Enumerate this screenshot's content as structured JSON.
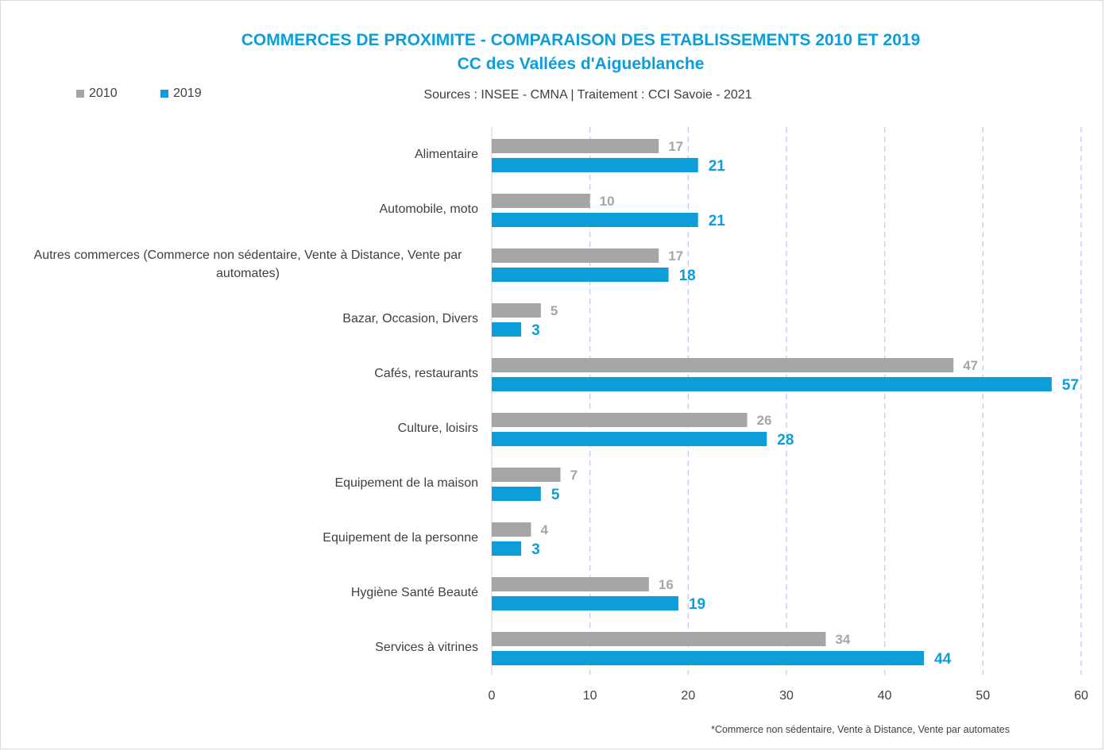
{
  "chart_data": {
    "type": "bar",
    "orientation": "horizontal",
    "title": "COMMERCES DE PROXIMITE - COMPARAISON DES ETABLISSEMENTS 2010 ET 2019",
    "subtitle": "CC des Vallées d'Aigueblanche",
    "source": "Sources : INSEE - CMNA  |  Traitement : CCI Savoie - 2021",
    "footnote": "*Commerce non sédentaire, Vente à Distance, Vente par automates",
    "categories": [
      "Alimentaire",
      "Automobile, moto",
      "Autres commerces (Commerce non sédentaire, Vente à Distance, Vente par automates)",
      "Bazar, Occasion, Divers",
      "Cafés, restaurants",
      "Culture, loisirs",
      "Equipement de la maison",
      "Equipement de la personne",
      "Hygiène Santé Beauté",
      "Services à vitrines"
    ],
    "series": [
      {
        "name": "2010",
        "color": "#a6a6a6",
        "values": [
          17,
          10,
          17,
          5,
          47,
          26,
          7,
          4,
          16,
          34
        ]
      },
      {
        "name": "2019",
        "color": "#0d9ed9",
        "values": [
          21,
          21,
          18,
          3,
          57,
          28,
          5,
          3,
          19,
          44
        ]
      }
    ],
    "xlim": [
      0,
      60
    ],
    "xticks": [
      0,
      10,
      20,
      30,
      40,
      50,
      60
    ],
    "grid": true,
    "legend_position": "top-left",
    "xlabel": "",
    "ylabel": ""
  }
}
